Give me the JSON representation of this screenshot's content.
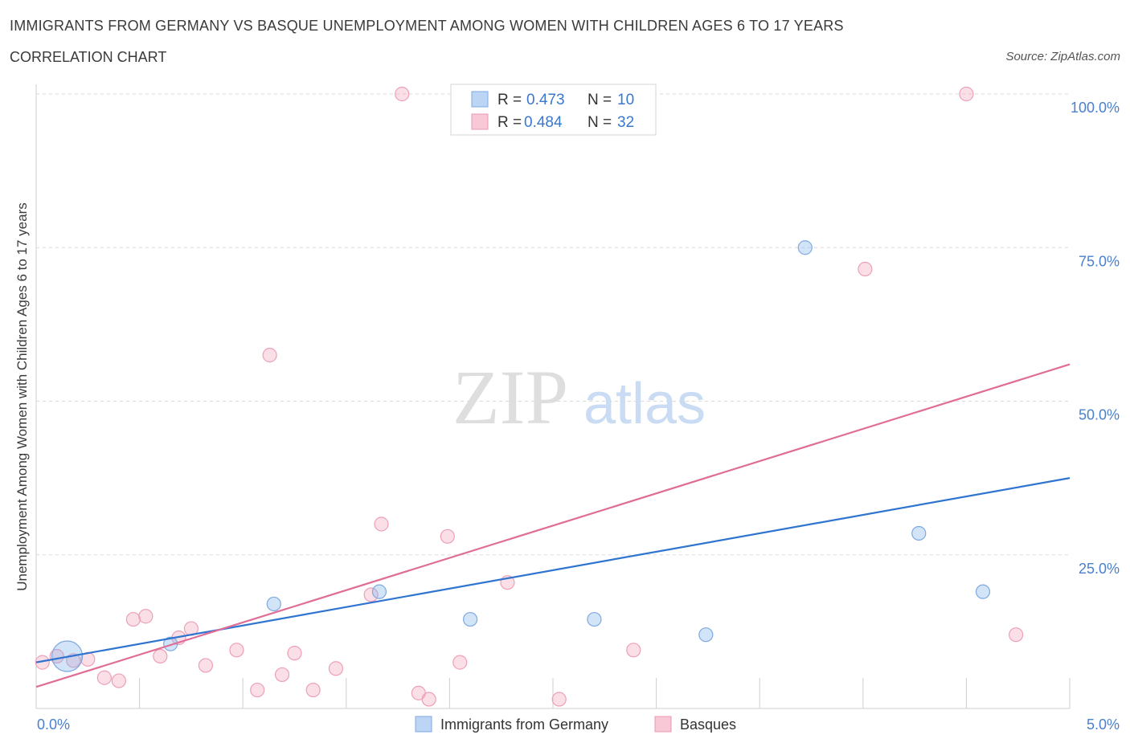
{
  "title": "IMMIGRANTS FROM GERMANY VS BASQUE UNEMPLOYMENT AMONG WOMEN WITH CHILDREN AGES 6 TO 17 YEARS",
  "subtitle": "CORRELATION CHART",
  "source": "Source: ZipAtlas.com",
  "watermark": {
    "zip": "ZIP",
    "atlas": "atlas"
  },
  "colors": {
    "blue": "#7fb1ea",
    "blue_line": "#2f74d0",
    "pink": "#f1a3bb",
    "pink_line": "#e06d96",
    "axis_value": "#4a80cf"
  },
  "legend_top": [
    {
      "r_label": "R =",
      "r_value": "0.473",
      "n_label": "N =",
      "n_value": "10"
    },
    {
      "r_label": "R =",
      "r_value": "0.484",
      "n_label": "N =",
      "n_value": "32"
    }
  ],
  "chart_data": {
    "type": "scatter",
    "xlabel": "",
    "ylabel": "Unemployment Among Women with Children Ages 6 to 17 years",
    "xlim": [
      0,
      5
    ],
    "ylim": [
      0,
      100
    ],
    "x_tick_labels": [
      "0.0%",
      "5.0%"
    ],
    "y_tick_labels": [
      "100.0%",
      "75.0%",
      "50.0%",
      "25.0%"
    ],
    "y_ticks": [
      100,
      75,
      50,
      25
    ],
    "grid": true,
    "legend_position": "bottom-center",
    "series": [
      {
        "name": "Immigrants from Germany",
        "color": "blue",
        "trend": {
          "x": [
            0,
            5
          ],
          "y": [
            7.5,
            37.5
          ]
        },
        "points": [
          {
            "x": 0.15,
            "y": 8.5,
            "big": true
          },
          {
            "x": 0.65,
            "y": 10.5
          },
          {
            "x": 1.15,
            "y": 17.0
          },
          {
            "x": 1.66,
            "y": 19.0
          },
          {
            "x": 2.1,
            "y": 14.5
          },
          {
            "x": 2.7,
            "y": 14.5
          },
          {
            "x": 3.24,
            "y": 12.0
          },
          {
            "x": 3.72,
            "y": 75.0
          },
          {
            "x": 4.27,
            "y": 28.5
          },
          {
            "x": 4.58,
            "y": 19.0
          }
        ]
      },
      {
        "name": "Basques",
        "color": "pink",
        "trend": {
          "x": [
            0,
            5
          ],
          "y": [
            3.5,
            56.0
          ]
        },
        "points": [
          {
            "x": 0.03,
            "y": 7.5
          },
          {
            "x": 0.1,
            "y": 8.5
          },
          {
            "x": 0.18,
            "y": 7.8
          },
          {
            "x": 0.25,
            "y": 8.0
          },
          {
            "x": 0.33,
            "y": 5.0
          },
          {
            "x": 0.4,
            "y": 4.5
          },
          {
            "x": 0.47,
            "y": 14.5
          },
          {
            "x": 0.53,
            "y": 15.0
          },
          {
            "x": 0.6,
            "y": 8.5
          },
          {
            "x": 0.69,
            "y": 11.5
          },
          {
            "x": 0.75,
            "y": 13.0
          },
          {
            "x": 0.82,
            "y": 7.0
          },
          {
            "x": 0.97,
            "y": 9.5
          },
          {
            "x": 1.07,
            "y": 3.0
          },
          {
            "x": 1.13,
            "y": 57.5
          },
          {
            "x": 1.19,
            "y": 5.5
          },
          {
            "x": 1.25,
            "y": 9.0
          },
          {
            "x": 1.34,
            "y": 3.0
          },
          {
            "x": 1.45,
            "y": 6.5
          },
          {
            "x": 1.62,
            "y": 18.5
          },
          {
            "x": 1.67,
            "y": 30.0
          },
          {
            "x": 1.77,
            "y": 100.0
          },
          {
            "x": 1.85,
            "y": 2.5
          },
          {
            "x": 1.9,
            "y": 1.5
          },
          {
            "x": 1.99,
            "y": 28.0
          },
          {
            "x": 2.05,
            "y": 7.5
          },
          {
            "x": 2.28,
            "y": 20.5
          },
          {
            "x": 2.53,
            "y": 1.5
          },
          {
            "x": 2.89,
            "y": 9.5
          },
          {
            "x": 4.01,
            "y": 71.5
          },
          {
            "x": 4.5,
            "y": 100.0
          },
          {
            "x": 4.74,
            "y": 12.0
          }
        ]
      }
    ]
  }
}
